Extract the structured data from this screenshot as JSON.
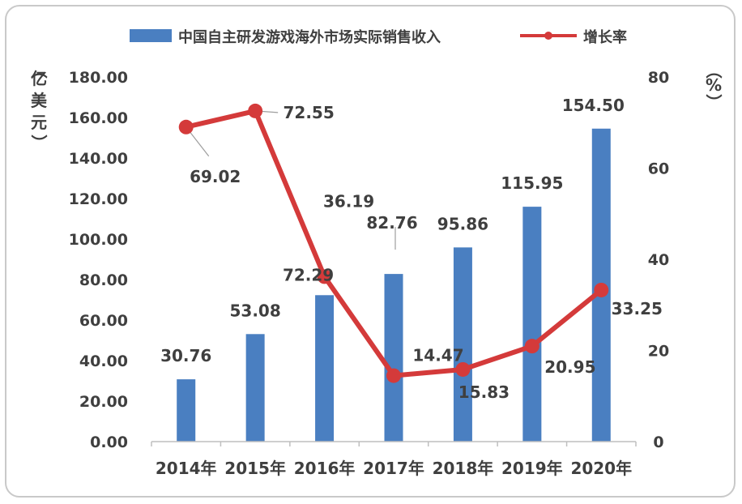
{
  "chart_data": {
    "type": "bar",
    "categories": [
      "2014年",
      "2015年",
      "2016年",
      "2017年",
      "2018年",
      "2019年",
      "2020年"
    ],
    "series": [
      {
        "name": "中国自主研发游戏海外市场实际销售收入",
        "type": "bar",
        "axis": "left",
        "color": "#4a7fc1",
        "values": [
          30.76,
          53.08,
          72.29,
          82.76,
          95.86,
          115.95,
          154.5
        ],
        "labels": [
          "30.76",
          "53.08",
          "72.29",
          "82.76",
          "95.86",
          "115.95",
          "154.50"
        ]
      },
      {
        "name": "增长率",
        "type": "line",
        "axis": "right",
        "color": "#d43a3a",
        "values": [
          69.02,
          72.55,
          36.19,
          14.47,
          15.83,
          20.95,
          33.25
        ],
        "labels": [
          "69.02",
          "72.55",
          "36.19",
          "14.47",
          "15.83",
          "20.95",
          "33.25"
        ]
      }
    ],
    "left_axis": {
      "range": [
        0,
        180
      ],
      "ticks": [
        "0.00",
        "20.00",
        "40.00",
        "60.00",
        "80.00",
        "100.00",
        "120.00",
        "140.00",
        "160.00",
        "180.00"
      ],
      "unit": [
        "（",
        "亿",
        "美",
        "元",
        "）"
      ]
    },
    "right_axis": {
      "range": [
        0,
        80
      ],
      "ticks": [
        "0",
        "20",
        "40",
        "60",
        "80"
      ],
      "unit": [
        "（",
        "%",
        "）"
      ]
    },
    "legend_position": "top",
    "grid": false
  }
}
